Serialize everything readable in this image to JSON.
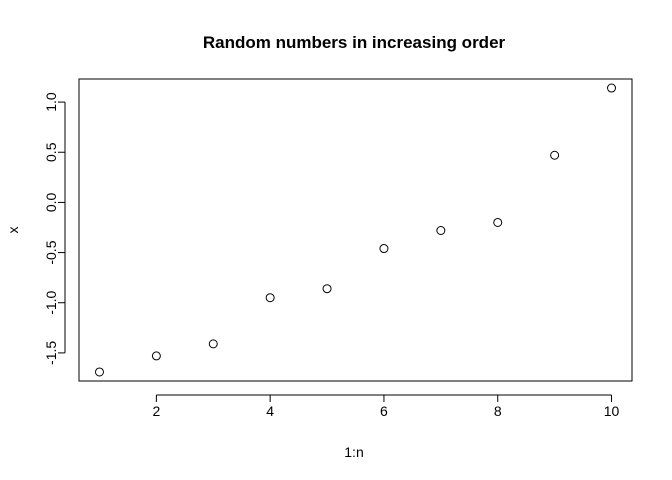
{
  "chart_data": {
    "type": "scatter",
    "title": "Random numbers in increasing order",
    "xlabel": "1:n",
    "ylabel": "x",
    "x": [
      1,
      2,
      3,
      4,
      5,
      6,
      7,
      8,
      9,
      10
    ],
    "y": [
      -1.69,
      -1.53,
      -1.41,
      -0.95,
      -0.86,
      -0.46,
      -0.28,
      -0.2,
      0.47,
      1.14
    ],
    "xlim": [
      0.64,
      10.36
    ],
    "ylim": [
      -1.78,
      1.23
    ],
    "xticks": [
      2,
      4,
      6,
      8,
      10
    ],
    "xtick_labels": [
      "2",
      "4",
      "6",
      "8",
      "10"
    ],
    "yticks": [
      -1.5,
      -1.0,
      -0.5,
      0.0,
      0.5,
      1.0
    ],
    "ytick_labels": [
      "-1.5",
      "-1.0",
      "-0.5",
      "0.0",
      "0.5",
      "1.0"
    ],
    "marker": "open-circle",
    "grid": false,
    "legend": "none",
    "colors": {
      "marker": "#000000",
      "axes": "#000000",
      "background": "#ffffff"
    }
  }
}
